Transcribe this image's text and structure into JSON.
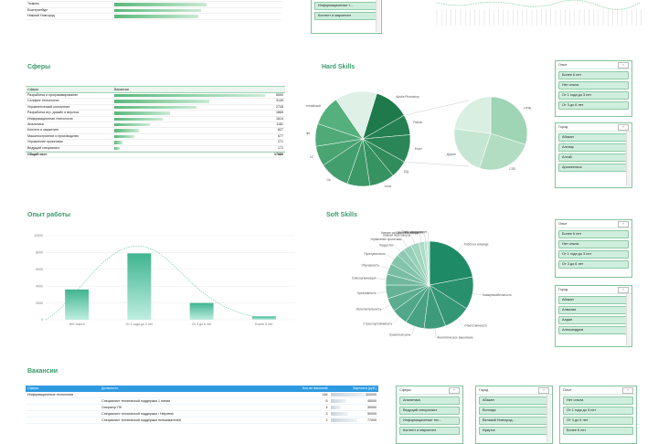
{
  "top_table": {
    "rows": [
      {
        "label": "Иркутск",
        "value": 0.75
      },
      {
        "label": "Тюмень",
        "value": 0.55
      },
      {
        "label": "Екатеринбург",
        "value": 0.52
      },
      {
        "label": "Нижний Новгород",
        "value": 0.5
      }
    ]
  },
  "top_slicer": {
    "items": [
      "Информационные т...",
      "Контент и маркетинг"
    ]
  },
  "sections": {
    "spheres_title": "Сферы",
    "hard_title": "Hard Skills",
    "exp_title": "Опыт работы",
    "soft_title": "Soft Skills",
    "vac_title": "Вакансии"
  },
  "spheres_table": {
    "col1": "Сферы",
    "col2": "Вакансии",
    "rows": [
      {
        "label": "Разработка и программирование",
        "value": 5000
      },
      {
        "label": "Селфинг технологии",
        "value": 3149
      },
      {
        "label": "Управленческий консалтинг",
        "value": 2728
      },
      {
        "label": "Разработка игр, дизайн и верстка",
        "value": 1865
      },
      {
        "label": "Информационная технология",
        "value": 1614
      },
      {
        "label": "Аналитика",
        "value": 1181
      },
      {
        "label": "Контент и маркетинг",
        "value": 827
      },
      {
        "label": "Машиностроение и производство",
        "value": 677
      },
      {
        "label": "Управление проектами",
        "value": 271
      },
      {
        "label": "Ведущий специалист",
        "value": 172
      }
    ],
    "total_label": "Общий итог",
    "total_value": "17880"
  },
  "exp_slicer": {
    "title": "Опыт",
    "items": [
      "Более 6 лет",
      "Нет опыта",
      "От 1 года до 3 лет",
      "От 3 до 6 лет"
    ]
  },
  "city_slicer": {
    "title": "Город",
    "items": [
      "Абакан",
      "Алтаир",
      "Алтай",
      "Архангельск"
    ]
  },
  "exp_slicer2": {
    "title": "Опыт",
    "items": [
      "Более 6 лет",
      "Нет опыта",
      "От 1 года до 3 лет",
      "От 3 до 6 лет"
    ]
  },
  "city_slicer2": {
    "title": "Город",
    "items": [
      "Абакан",
      "Алматия",
      "Алдан",
      "Александров"
    ]
  },
  "hard_pie": {
    "labels": [
      "Adobe Photoshop",
      "Python",
      "Excel",
      "SQL",
      "Linux",
      "Java",
      "Git",
      "1С",
      "JavaScript",
      "Английский",
      "HTML",
      "CSS",
      "Другие"
    ]
  },
  "soft_pie": {
    "labels": [
      "Работа в команде",
      "Коммуникабельность",
      "Ответственность",
      "Аналитическое мышление",
      "Грамотная речь",
      "Стрессоустойчивость",
      "Исполнительность",
      "Креативность",
      "Самоорганизация",
      "Обучаемость",
      "Пунктуальность",
      "Лидерство",
      "Управление проектами",
      "Навыки переговоров",
      "Умение работать в команде",
      "Деловая переписка",
      "Тайм-менеджмент"
    ]
  },
  "chart_data": [
    {
      "type": "bar",
      "title": "Опыт работы",
      "categories": [
        "Нет опыта",
        "От 1 года до 3 лет",
        "От 3 до 6 лет",
        "Более 6 лет"
      ],
      "values": [
        3600,
        7900,
        2000,
        400
      ],
      "ylim": [
        0,
        10000
      ],
      "yticks": [
        0,
        2000,
        4000,
        6000,
        8000,
        10000
      ],
      "trendline": "dotted",
      "colors": [
        "#3fb48f",
        "#bfeee0"
      ]
    }
  ],
  "vac_table": {
    "headers": [
      "Сферы",
      "Должность",
      "Кол-во вакансий",
      "Зарплата (руб.)"
    ],
    "rows": [
      {
        "c1": "Информационные технологии",
        "c2": "",
        "c3": "146",
        "c4": "110000"
      },
      {
        "c1": "",
        "c2": "Специалист технической поддержки 1 линии",
        "c3": "6",
        "c4": "45000"
      },
      {
        "c1": "",
        "c2": "Оператор ПК",
        "c3": "4",
        "c4": "30000"
      },
      {
        "c1": "",
        "c2": "Специалист технической поддержки / Helpdesk",
        "c3": "3",
        "c4": "50000"
      },
      {
        "c1": "",
        "c2": "Специалист технической поддержки пользователей",
        "c3": "2",
        "c4": "77000"
      }
    ]
  },
  "sphere_slicer_bottom": {
    "title": "Сферы",
    "items": [
      "Аналитика",
      "Ведущий специалист",
      "Информационные тех...",
      "Контент и маркетинг"
    ]
  },
  "city_slicer_bottom": {
    "title": "Город",
    "items": [
      "Абакан",
      "Вологда",
      "Великий Новгород...",
      "Иркутск"
    ]
  },
  "exp_slicer_bottom": {
    "title": "Опыт",
    "items": [
      "Нет опыта",
      "От 1 года до 3 лет",
      "От 3 до 6 лет",
      "Более 6 лет"
    ]
  }
}
